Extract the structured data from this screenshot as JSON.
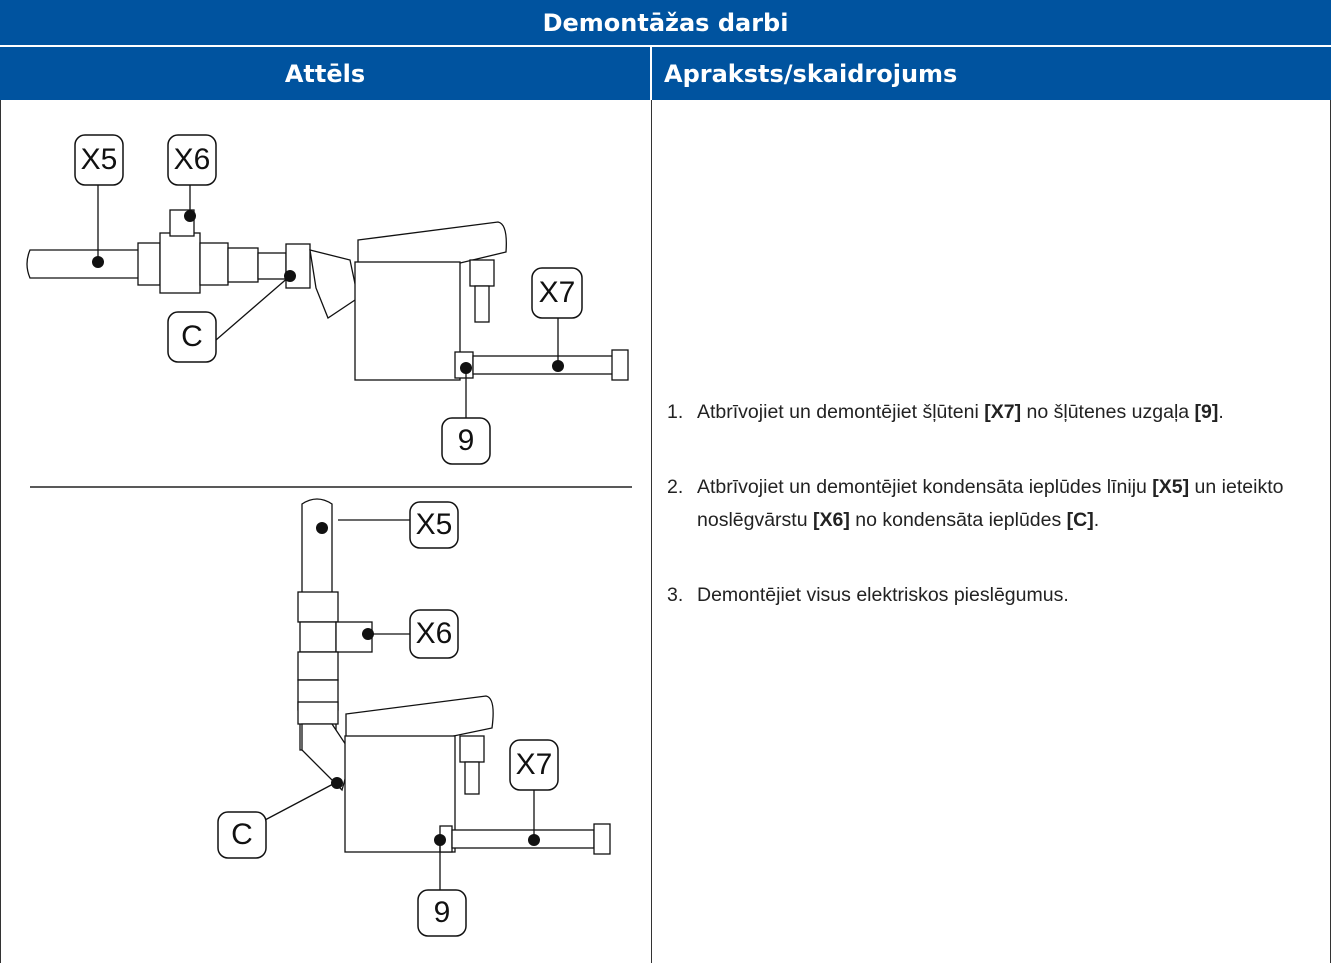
{
  "table": {
    "title": "Demontāžas darbi",
    "headers": [
      "Attēls",
      "Apraksts/skaidrojums"
    ],
    "figures": [
      {
        "labels": [
          "X5",
          "X6",
          "C",
          "X7",
          "9"
        ]
      },
      {
        "labels": [
          "X5",
          "X6",
          "C",
          "X7",
          "9"
        ]
      }
    ],
    "steps": [
      {
        "number": "1.",
        "segments": [
          "Atbrīvojiet un demontējiet šļūteni ",
          "[X7]",
          " no šļūtenes uzgaļa ",
          "[9]",
          "."
        ]
      },
      {
        "number": "2.",
        "segments": [
          "Atbrīvojiet un demontējiet kondensāta ieplūdes līniju ",
          "[X5]",
          " un ieteikto noslēgvārstu ",
          "[X6]",
          " no kondensāta ieplūdes ",
          "[C]",
          "."
        ]
      },
      {
        "number": "3.",
        "segments": [
          "Demontējiet visus elektriskos pieslēgumus."
        ]
      }
    ]
  }
}
